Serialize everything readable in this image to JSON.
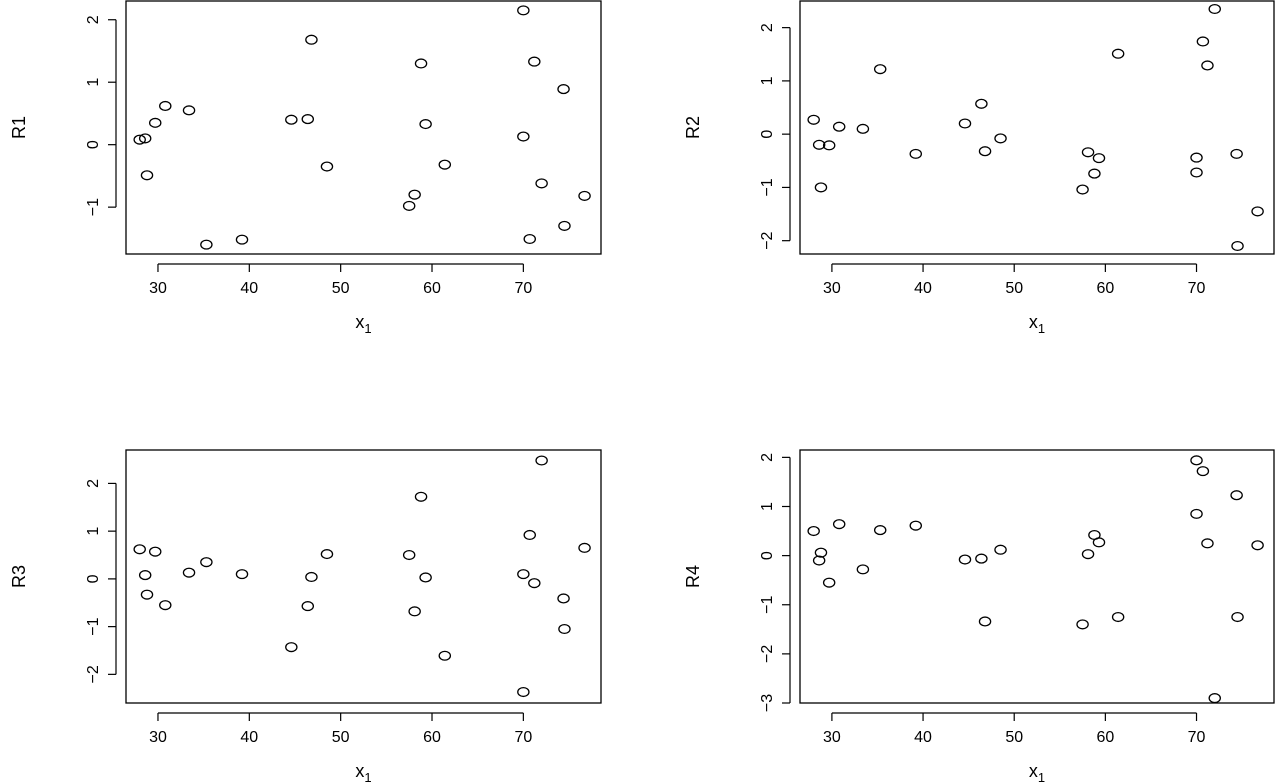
{
  "chart_data": [
    {
      "type": "scatter",
      "title": "",
      "xlabel": "x",
      "xlabel_sub": "1",
      "ylabel": "R1",
      "xlim": [
        26.5,
        78.5
      ],
      "ylim": [
        -1.75,
        2.3
      ],
      "xticks": [
        30,
        40,
        50,
        60,
        70
      ],
      "yticks": [
        -1,
        0,
        1,
        2
      ],
      "xtick_labels": [
        "30",
        "40",
        "50",
        "60",
        "70"
      ],
      "ytick_labels": [
        "−1",
        "0",
        "1",
        "2"
      ],
      "grid": false,
      "points": [
        {
          "x": 28.0,
          "y": 0.08
        },
        {
          "x": 28.6,
          "y": 0.1
        },
        {
          "x": 28.8,
          "y": -0.49
        },
        {
          "x": 29.7,
          "y": 0.35
        },
        {
          "x": 30.8,
          "y": 0.62
        },
        {
          "x": 33.4,
          "y": 0.55
        },
        {
          "x": 35.3,
          "y": -1.6
        },
        {
          "x": 39.2,
          "y": -1.52
        },
        {
          "x": 44.6,
          "y": 0.4
        },
        {
          "x": 46.4,
          "y": 0.41
        },
        {
          "x": 46.8,
          "y": 1.68
        },
        {
          "x": 48.5,
          "y": -0.35
        },
        {
          "x": 57.5,
          "y": -0.98
        },
        {
          "x": 58.1,
          "y": -0.8
        },
        {
          "x": 58.8,
          "y": 1.3
        },
        {
          "x": 59.3,
          "y": 0.33
        },
        {
          "x": 61.4,
          "y": -0.32
        },
        {
          "x": 70.0,
          "y": 2.15
        },
        {
          "x": 70.0,
          "y": 0.13
        },
        {
          "x": 70.7,
          "y": -1.51
        },
        {
          "x": 71.2,
          "y": 1.33
        },
        {
          "x": 72.0,
          "y": -0.62
        },
        {
          "x": 74.4,
          "y": 0.89
        },
        {
          "x": 74.5,
          "y": -1.3
        },
        {
          "x": 76.7,
          "y": -0.82
        }
      ]
    },
    {
      "type": "scatter",
      "title": "",
      "xlabel": "x",
      "xlabel_sub": "1",
      "ylabel": "R2",
      "xlim": [
        26.5,
        78.5
      ],
      "ylim": [
        -2.25,
        2.5
      ],
      "xticks": [
        30,
        40,
        50,
        60,
        70
      ],
      "yticks": [
        -2,
        -1,
        0,
        1,
        2
      ],
      "xtick_labels": [
        "30",
        "40",
        "50",
        "60",
        "70"
      ],
      "ytick_labels": [
        "−2",
        "−1",
        "0",
        "1",
        "2"
      ],
      "grid": false,
      "points": [
        {
          "x": 28.0,
          "y": 0.27
        },
        {
          "x": 28.6,
          "y": -0.2
        },
        {
          "x": 28.8,
          "y": -1.0
        },
        {
          "x": 29.7,
          "y": -0.21
        },
        {
          "x": 30.8,
          "y": 0.14
        },
        {
          "x": 33.4,
          "y": 0.1
        },
        {
          "x": 35.3,
          "y": 1.22
        },
        {
          "x": 39.2,
          "y": -0.37
        },
        {
          "x": 44.6,
          "y": 0.2
        },
        {
          "x": 46.4,
          "y": 0.57
        },
        {
          "x": 46.8,
          "y": -0.32
        },
        {
          "x": 48.5,
          "y": -0.08
        },
        {
          "x": 57.5,
          "y": -1.04
        },
        {
          "x": 58.1,
          "y": -0.34
        },
        {
          "x": 58.8,
          "y": -0.74
        },
        {
          "x": 59.3,
          "y": -0.45
        },
        {
          "x": 61.4,
          "y": 1.51
        },
        {
          "x": 70.0,
          "y": -0.44
        },
        {
          "x": 70.0,
          "y": -0.72
        },
        {
          "x": 70.7,
          "y": 1.74
        },
        {
          "x": 71.2,
          "y": 1.29
        },
        {
          "x": 72.0,
          "y": 2.35
        },
        {
          "x": 74.4,
          "y": -0.37
        },
        {
          "x": 74.5,
          "y": -2.1
        },
        {
          "x": 76.7,
          "y": -1.45
        }
      ]
    },
    {
      "type": "scatter",
      "title": "",
      "xlabel": "x",
      "xlabel_sub": "1",
      "ylabel": "R3",
      "xlim": [
        26.5,
        78.5
      ],
      "ylim": [
        -2.6,
        2.7
      ],
      "xticks": [
        30,
        40,
        50,
        60,
        70
      ],
      "yticks": [
        -2,
        -1,
        0,
        1,
        2
      ],
      "xtick_labels": [
        "30",
        "40",
        "50",
        "60",
        "70"
      ],
      "ytick_labels": [
        "−2",
        "−1",
        "0",
        "1",
        "2"
      ],
      "grid": false,
      "points": [
        {
          "x": 28.0,
          "y": 0.62
        },
        {
          "x": 28.6,
          "y": 0.08
        },
        {
          "x": 28.8,
          "y": -0.33
        },
        {
          "x": 29.7,
          "y": 0.57
        },
        {
          "x": 30.8,
          "y": -0.55
        },
        {
          "x": 33.4,
          "y": 0.13
        },
        {
          "x": 35.3,
          "y": 0.35
        },
        {
          "x": 39.2,
          "y": 0.1
        },
        {
          "x": 44.6,
          "y": -1.43
        },
        {
          "x": 46.4,
          "y": -0.57
        },
        {
          "x": 46.8,
          "y": 0.04
        },
        {
          "x": 48.5,
          "y": 0.52
        },
        {
          "x": 57.5,
          "y": 0.5
        },
        {
          "x": 58.1,
          "y": -0.68
        },
        {
          "x": 58.8,
          "y": 1.72
        },
        {
          "x": 59.3,
          "y": 0.03
        },
        {
          "x": 61.4,
          "y": -1.61
        },
        {
          "x": 70.0,
          "y": 0.1
        },
        {
          "x": 70.0,
          "y": -2.37
        },
        {
          "x": 70.7,
          "y": 0.92
        },
        {
          "x": 71.2,
          "y": -0.09
        },
        {
          "x": 72.0,
          "y": 2.48
        },
        {
          "x": 74.4,
          "y": -0.41
        },
        {
          "x": 74.5,
          "y": -1.05
        },
        {
          "x": 76.7,
          "y": 0.65
        }
      ]
    },
    {
      "type": "scatter",
      "title": "",
      "xlabel": "x",
      "xlabel_sub": "1",
      "ylabel": "R4",
      "xlim": [
        26.5,
        78.5
      ],
      "ylim": [
        -3.0,
        2.15
      ],
      "xticks": [
        30,
        40,
        50,
        60,
        70
      ],
      "yticks": [
        -3,
        -2,
        -1,
        0,
        1,
        2
      ],
      "xtick_labels": [
        "30",
        "40",
        "50",
        "60",
        "70"
      ],
      "ytick_labels": [
        "−3",
        "−2",
        "−1",
        "0",
        "1",
        "2"
      ],
      "grid": false,
      "points": [
        {
          "x": 28.0,
          "y": 0.5
        },
        {
          "x": 28.6,
          "y": -0.1
        },
        {
          "x": 28.8,
          "y": 0.06
        },
        {
          "x": 29.7,
          "y": -0.55
        },
        {
          "x": 30.8,
          "y": 0.64
        },
        {
          "x": 33.4,
          "y": -0.28
        },
        {
          "x": 35.3,
          "y": 0.52
        },
        {
          "x": 39.2,
          "y": 0.61
        },
        {
          "x": 44.6,
          "y": -0.08
        },
        {
          "x": 46.4,
          "y": -0.06
        },
        {
          "x": 46.8,
          "y": -1.34
        },
        {
          "x": 48.5,
          "y": 0.12
        },
        {
          "x": 57.5,
          "y": -1.4
        },
        {
          "x": 58.1,
          "y": 0.03
        },
        {
          "x": 58.8,
          "y": 0.42
        },
        {
          "x": 59.3,
          "y": 0.27
        },
        {
          "x": 61.4,
          "y": -1.25
        },
        {
          "x": 70.0,
          "y": 1.94
        },
        {
          "x": 70.0,
          "y": 0.85
        },
        {
          "x": 70.7,
          "y": 1.72
        },
        {
          "x": 71.2,
          "y": 0.25
        },
        {
          "x": 72.0,
          "y": -2.9
        },
        {
          "x": 74.4,
          "y": 1.23
        },
        {
          "x": 74.5,
          "y": -1.25
        },
        {
          "x": 76.7,
          "y": 0.21
        }
      ]
    }
  ]
}
